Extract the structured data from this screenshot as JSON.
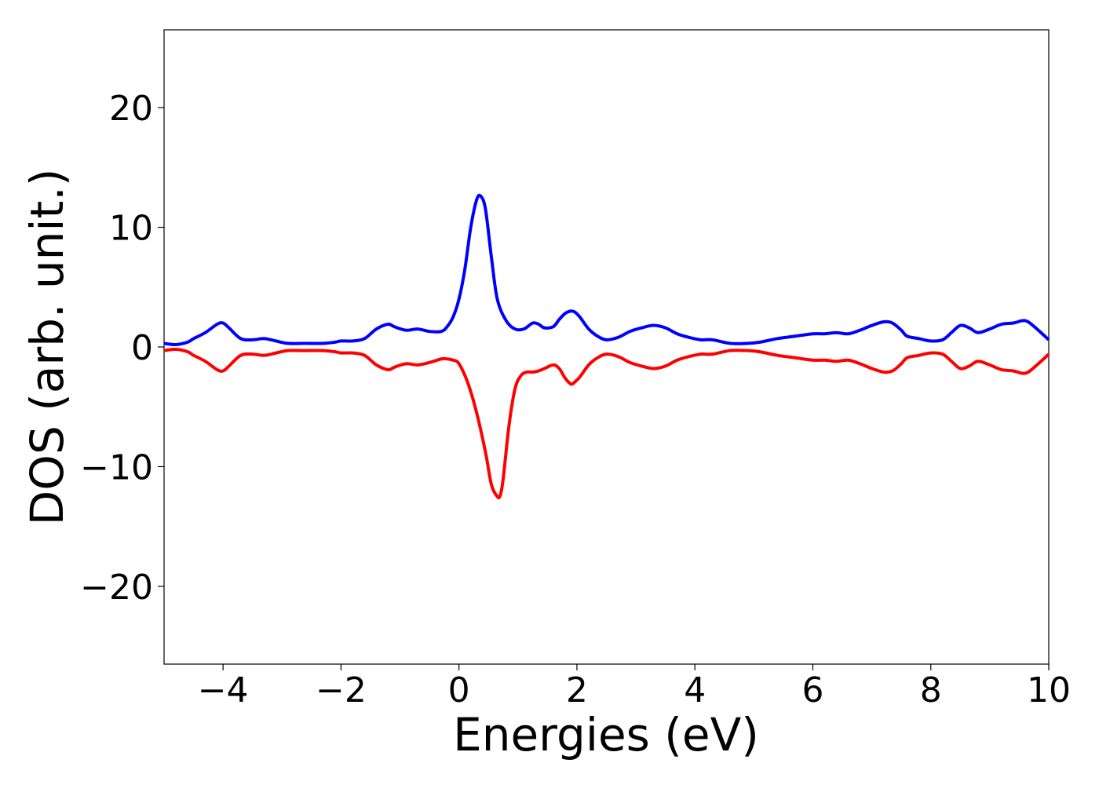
{
  "chart_data": {
    "type": "line",
    "title": "",
    "xlabel": "Energies (eV)",
    "ylabel": "DOS (arb. unit.)",
    "xlim": [
      -5,
      10
    ],
    "ylim": [
      -26.5,
      26.5
    ],
    "xticks": [
      -4,
      -2,
      0,
      2,
      4,
      6,
      8,
      10
    ],
    "yticks": [
      -20,
      -10,
      0,
      10,
      20
    ],
    "xtick_labels": [
      "−4",
      "−2",
      "0",
      "2",
      "4",
      "6",
      "8",
      "10"
    ],
    "ytick_labels": [
      "−20",
      "−10",
      "0",
      "10",
      "20"
    ],
    "grid": false,
    "legend": "none",
    "series": [
      {
        "color": "#0000ff",
        "x": [
          -5.0,
          -4.8,
          -4.6,
          -4.5,
          -4.3,
          -4.1,
          -4.0,
          -3.9,
          -3.7,
          -3.5,
          -3.3,
          -3.1,
          -2.9,
          -2.6,
          -2.3,
          -2.1,
          -2.0,
          -1.8,
          -1.6,
          -1.4,
          -1.2,
          -1.1,
          -0.9,
          -0.7,
          -0.5,
          -0.3,
          -0.2,
          -0.1,
          0.0,
          0.1,
          0.2,
          0.3,
          0.37,
          0.45,
          0.55,
          0.65,
          0.8,
          0.95,
          1.1,
          1.25,
          1.35,
          1.45,
          1.6,
          1.7,
          1.8,
          1.9,
          1.97,
          2.05,
          2.2,
          2.35,
          2.5,
          2.7,
          2.9,
          3.1,
          3.3,
          3.5,
          3.7,
          3.9,
          4.1,
          4.3,
          4.6,
          4.9,
          5.1,
          5.4,
          5.7,
          6.0,
          6.2,
          6.4,
          6.6,
          6.8,
          7.0,
          7.2,
          7.35,
          7.5,
          7.6,
          7.8,
          8.0,
          8.2,
          8.35,
          8.5,
          8.65,
          8.8,
          9.0,
          9.2,
          9.4,
          9.55,
          9.65,
          9.8,
          10.0
        ],
        "y": [
          0.3,
          0.2,
          0.4,
          0.7,
          1.2,
          1.9,
          2.0,
          1.6,
          0.7,
          0.6,
          0.7,
          0.5,
          0.3,
          0.3,
          0.3,
          0.4,
          0.5,
          0.5,
          0.7,
          1.5,
          1.9,
          1.7,
          1.4,
          1.5,
          1.3,
          1.3,
          1.7,
          2.5,
          4.0,
          6.5,
          10.0,
          12.3,
          12.6,
          11.5,
          7.5,
          4.0,
          2.2,
          1.5,
          1.5,
          2.0,
          1.9,
          1.6,
          1.7,
          2.3,
          2.8,
          3.0,
          2.9,
          2.5,
          1.5,
          0.9,
          0.6,
          0.8,
          1.3,
          1.6,
          1.8,
          1.6,
          1.1,
          0.8,
          0.6,
          0.6,
          0.3,
          0.3,
          0.4,
          0.7,
          0.9,
          1.1,
          1.1,
          1.2,
          1.1,
          1.4,
          1.8,
          2.1,
          2.0,
          1.4,
          0.9,
          0.7,
          0.5,
          0.6,
          1.2,
          1.8,
          1.6,
          1.2,
          1.5,
          1.9,
          2.0,
          2.2,
          2.1,
          1.5,
          0.6
        ]
      },
      {
        "color": "#ff0000",
        "x": [
          -5.0,
          -4.8,
          -4.6,
          -4.5,
          -4.3,
          -4.1,
          -4.0,
          -3.9,
          -3.7,
          -3.5,
          -3.3,
          -3.1,
          -2.9,
          -2.6,
          -2.3,
          -2.1,
          -2.0,
          -1.8,
          -1.6,
          -1.4,
          -1.2,
          -1.1,
          -0.9,
          -0.7,
          -0.5,
          -0.3,
          -0.2,
          -0.1,
          0.0,
          0.15,
          0.3,
          0.45,
          0.55,
          0.65,
          0.7,
          0.75,
          0.85,
          0.95,
          1.05,
          1.15,
          1.25,
          1.35,
          1.45,
          1.6,
          1.7,
          1.8,
          1.9,
          1.97,
          2.05,
          2.2,
          2.35,
          2.5,
          2.7,
          2.9,
          3.1,
          3.3,
          3.5,
          3.7,
          3.9,
          4.1,
          4.3,
          4.6,
          4.9,
          5.1,
          5.4,
          5.7,
          6.0,
          6.2,
          6.4,
          6.6,
          6.8,
          7.0,
          7.2,
          7.35,
          7.5,
          7.6,
          7.8,
          8.0,
          8.2,
          8.35,
          8.5,
          8.65,
          8.8,
          9.0,
          9.2,
          9.4,
          9.55,
          9.65,
          9.8,
          10.0
        ],
        "y": [
          -0.3,
          -0.2,
          -0.4,
          -0.7,
          -1.2,
          -1.9,
          -2.0,
          -1.6,
          -0.7,
          -0.6,
          -0.7,
          -0.5,
          -0.3,
          -0.3,
          -0.3,
          -0.4,
          -0.5,
          -0.5,
          -0.7,
          -1.5,
          -1.9,
          -1.7,
          -1.4,
          -1.5,
          -1.3,
          -1.0,
          -1.0,
          -1.1,
          -1.4,
          -3.0,
          -5.5,
          -8.8,
          -11.5,
          -12.5,
          -12.4,
          -11.0,
          -6.5,
          -3.5,
          -2.4,
          -2.1,
          -2.1,
          -2.0,
          -1.8,
          -1.5,
          -1.8,
          -2.6,
          -3.1,
          -2.9,
          -2.5,
          -1.5,
          -0.9,
          -0.6,
          -0.8,
          -1.3,
          -1.6,
          -1.8,
          -1.6,
          -1.1,
          -0.8,
          -0.6,
          -0.6,
          -0.3,
          -0.3,
          -0.4,
          -0.7,
          -0.9,
          -1.1,
          -1.1,
          -1.2,
          -1.1,
          -1.4,
          -1.8,
          -2.1,
          -2.0,
          -1.4,
          -0.9,
          -0.7,
          -0.5,
          -0.6,
          -1.2,
          -1.8,
          -1.6,
          -1.2,
          -1.5,
          -1.9,
          -2.0,
          -2.2,
          -2.1,
          -1.5,
          -0.6
        ]
      }
    ]
  }
}
